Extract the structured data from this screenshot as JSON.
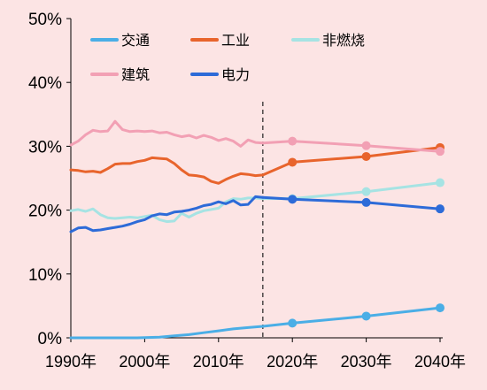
{
  "chart_data": {
    "type": "line",
    "title": "",
    "xlabel": "",
    "ylabel": "",
    "x_ticks": [
      "1990年",
      "2000年",
      "2010年",
      "2020年",
      "2030年",
      "2040年"
    ],
    "y_ticks": [
      "0%",
      "10%",
      "20%",
      "30%",
      "40%",
      "50%"
    ],
    "xlim": [
      1990,
      2040
    ],
    "ylim": [
      0,
      50
    ],
    "divider_year": 2016,
    "grid": false,
    "legend_position": "top",
    "series": [
      {
        "name": "交通",
        "color": "#4aaee6",
        "historical": [
          [
            1990,
            0
          ],
          [
            1993,
            0
          ],
          [
            1996,
            0
          ],
          [
            1999,
            0
          ],
          [
            2002,
            0.1
          ],
          [
            2004,
            0.3
          ],
          [
            2006,
            0.5
          ],
          [
            2008,
            0.8
          ],
          [
            2010,
            1.1
          ],
          [
            2012,
            1.4
          ],
          [
            2014,
            1.6
          ],
          [
            2016,
            1.8
          ]
        ],
        "forecast": [
          [
            2016,
            1.8
          ],
          [
            2020,
            2.3
          ],
          [
            2030,
            3.4
          ],
          [
            2040,
            4.7
          ]
        ],
        "markers": [
          [
            2020,
            2.3
          ],
          [
            2030,
            3.4
          ],
          [
            2040,
            4.7
          ]
        ]
      },
      {
        "name": "工业",
        "color": "#e8642c",
        "historical": [
          [
            1990,
            26.3
          ],
          [
            1991,
            26.2
          ],
          [
            1992,
            26.0
          ],
          [
            1993,
            26.1
          ],
          [
            1994,
            25.9
          ],
          [
            1995,
            26.5
          ],
          [
            1996,
            27.2
          ],
          [
            1997,
            27.3
          ],
          [
            1998,
            27.3
          ],
          [
            1999,
            27.6
          ],
          [
            2000,
            27.8
          ],
          [
            2001,
            28.2
          ],
          [
            2002,
            28.1
          ],
          [
            2003,
            28.0
          ],
          [
            2004,
            27.3
          ],
          [
            2005,
            26.3
          ],
          [
            2006,
            25.5
          ],
          [
            2007,
            25.4
          ],
          [
            2008,
            25.2
          ],
          [
            2009,
            24.5
          ],
          [
            2010,
            24.2
          ],
          [
            2011,
            24.8
          ],
          [
            2012,
            25.3
          ],
          [
            2013,
            25.7
          ],
          [
            2014,
            25.6
          ],
          [
            2015,
            25.4
          ],
          [
            2016,
            25.5
          ]
        ],
        "forecast": [
          [
            2016,
            25.5
          ],
          [
            2020,
            27.5
          ],
          [
            2030,
            28.4
          ],
          [
            2040,
            29.8
          ]
        ],
        "markers": [
          [
            2020,
            27.5
          ],
          [
            2030,
            28.4
          ],
          [
            2040,
            29.8
          ]
        ]
      },
      {
        "name": "非燃烧",
        "color": "#a6e3e3",
        "historical": [
          [
            1990,
            19.9
          ],
          [
            1991,
            20.1
          ],
          [
            1992,
            19.8
          ],
          [
            1993,
            20.2
          ],
          [
            1994,
            19.3
          ],
          [
            1995,
            18.8
          ],
          [
            1996,
            18.7
          ],
          [
            1997,
            18.8
          ],
          [
            1998,
            18.9
          ],
          [
            1999,
            18.8
          ],
          [
            2000,
            19.0
          ],
          [
            2001,
            19.2
          ],
          [
            2002,
            18.5
          ],
          [
            2003,
            18.2
          ],
          [
            2004,
            18.3
          ],
          [
            2005,
            19.5
          ],
          [
            2006,
            18.9
          ],
          [
            2007,
            19.5
          ],
          [
            2008,
            19.9
          ],
          [
            2009,
            20.1
          ],
          [
            2010,
            20.3
          ],
          [
            2011,
            21.3
          ],
          [
            2012,
            21.8
          ],
          [
            2013,
            21.7
          ],
          [
            2014,
            21.9
          ],
          [
            2015,
            21.9
          ],
          [
            2016,
            21.8
          ]
        ],
        "forecast": [
          [
            2016,
            21.8
          ],
          [
            2020,
            21.8
          ],
          [
            2030,
            22.9
          ],
          [
            2040,
            24.3
          ]
        ],
        "markers": [
          [
            2020,
            21.8
          ],
          [
            2030,
            22.9
          ],
          [
            2040,
            24.3
          ]
        ]
      },
      {
        "name": "建筑",
        "color": "#f2a0b4",
        "historical": [
          [
            1990,
            30.2
          ],
          [
            1991,
            30.8
          ],
          [
            1992,
            31.8
          ],
          [
            1993,
            32.5
          ],
          [
            1994,
            32.3
          ],
          [
            1995,
            32.4
          ],
          [
            1996,
            33.9
          ],
          [
            1997,
            32.6
          ],
          [
            1998,
            32.3
          ],
          [
            1999,
            32.4
          ],
          [
            2000,
            32.3
          ],
          [
            2001,
            32.4
          ],
          [
            2002,
            32.1
          ],
          [
            2003,
            32.2
          ],
          [
            2004,
            31.8
          ],
          [
            2005,
            31.5
          ],
          [
            2006,
            31.7
          ],
          [
            2007,
            31.3
          ],
          [
            2008,
            31.7
          ],
          [
            2009,
            31.4
          ],
          [
            2010,
            30.9
          ],
          [
            2011,
            31.2
          ],
          [
            2012,
            30.8
          ],
          [
            2013,
            30.0
          ],
          [
            2014,
            31.0
          ],
          [
            2015,
            30.6
          ],
          [
            2016,
            30.5
          ]
        ],
        "forecast": [
          [
            2016,
            30.5
          ],
          [
            2020,
            30.8
          ],
          [
            2030,
            30.1
          ],
          [
            2040,
            29.2
          ]
        ],
        "markers": [
          [
            2020,
            30.8
          ],
          [
            2030,
            30.1
          ],
          [
            2040,
            29.2
          ]
        ]
      },
      {
        "name": "电力",
        "color": "#2d6bd8",
        "historical": [
          [
            1990,
            16.6
          ],
          [
            1991,
            17.2
          ],
          [
            1992,
            17.3
          ],
          [
            1993,
            16.8
          ],
          [
            1994,
            16.9
          ],
          [
            1995,
            17.1
          ],
          [
            1996,
            17.3
          ],
          [
            1997,
            17.5
          ],
          [
            1998,
            17.8
          ],
          [
            1999,
            18.2
          ],
          [
            2000,
            18.5
          ],
          [
            2001,
            19.1
          ],
          [
            2002,
            19.4
          ],
          [
            2003,
            19.3
          ],
          [
            2004,
            19.7
          ],
          [
            2005,
            19.8
          ],
          [
            2006,
            20.0
          ],
          [
            2007,
            20.3
          ],
          [
            2008,
            20.7
          ],
          [
            2009,
            20.9
          ],
          [
            2010,
            21.3
          ],
          [
            2011,
            21.0
          ],
          [
            2012,
            21.5
          ],
          [
            2013,
            20.8
          ],
          [
            2014,
            20.9
          ],
          [
            2015,
            22.1
          ],
          [
            2016,
            22.0
          ]
        ],
        "forecast": [
          [
            2016,
            22.0
          ],
          [
            2020,
            21.7
          ],
          [
            2030,
            21.2
          ],
          [
            2040,
            20.2
          ]
        ],
        "markers": [
          [
            2020,
            21.7
          ],
          [
            2030,
            21.2
          ],
          [
            2040,
            20.2
          ]
        ]
      }
    ]
  }
}
